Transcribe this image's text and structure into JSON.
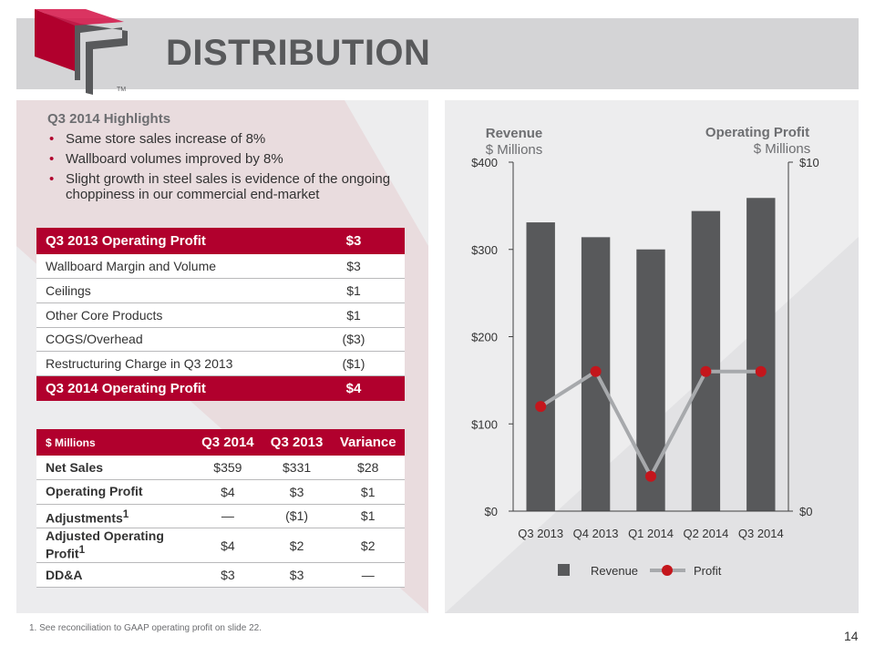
{
  "header": {
    "title": "DISTRIBUTION",
    "logo_mark": "TM"
  },
  "highlights": {
    "heading": "Q3 2014 Highlights",
    "items": [
      "Same store sales increase of 8%",
      "Wallboard volumes improved by 8%",
      "Slight growth in steel sales is evidence of the ongoing choppiness in our commercial end-market"
    ]
  },
  "bridge_table": {
    "rows": [
      {
        "label": "Q3 2013 Operating Profit",
        "value": "$3"
      },
      {
        "label": "Wallboard Margin and Volume",
        "value": "$3"
      },
      {
        "label": "Ceilings",
        "value": "$1"
      },
      {
        "label": "Other Core Products",
        "value": "$1"
      },
      {
        "label": "COGS/Overhead",
        "value": "($3)"
      },
      {
        "label": "Restructuring Charge in Q3 2013",
        "value": "($1)"
      },
      {
        "label": "Q3 2014 Operating Profit",
        "value": "$4"
      }
    ]
  },
  "financial_table": {
    "headers": [
      "$ Millions",
      "Q3 2014",
      "Q3 2013",
      "Variance"
    ],
    "rows": [
      {
        "label": "Net Sales",
        "sup": "",
        "values": [
          "$359",
          "$331",
          "$28"
        ]
      },
      {
        "label": "Operating Profit",
        "sup": "",
        "values": [
          "$4",
          "$3",
          "$1"
        ]
      },
      {
        "label": "Adjustments",
        "sup": "1",
        "values": [
          "—",
          "($1)",
          "$1"
        ]
      },
      {
        "label": "Adjusted Operating Profit",
        "sup": "1",
        "values": [
          "$4",
          "$2",
          "$2"
        ]
      },
      {
        "label": "DD&A",
        "sup": "",
        "values": [
          "$3",
          "$3",
          "—"
        ]
      }
    ]
  },
  "footnote": "1. See reconciliation to GAAP operating profit on slide 22.",
  "slide_number": "14",
  "chart_data": {
    "type": "bar",
    "categories": [
      "Q3 2013",
      "Q4 2013",
      "Q1 2014",
      "Q2 2014",
      "Q3 2014"
    ],
    "series": [
      {
        "name": "Revenue",
        "type": "bar",
        "axis": "left",
        "values": [
          331,
          314,
          300,
          344,
          359
        ]
      },
      {
        "name": "Profit",
        "type": "line",
        "axis": "right",
        "values": [
          3,
          4,
          1,
          4,
          4
        ]
      }
    ],
    "left_axis": {
      "title": "Revenue",
      "unit": "$ Millions",
      "ylim": [
        0,
        400
      ],
      "ticks": [
        0,
        100,
        200,
        300,
        400
      ],
      "tick_labels": [
        "$0",
        "$100",
        "$200",
        "$300",
        "$400"
      ]
    },
    "right_axis": {
      "title": "Operating Profit",
      "unit": "$ Millions",
      "ylim": [
        0,
        10
      ],
      "ticks": [
        0,
        10
      ],
      "tick_labels": [
        "$0",
        "$10"
      ]
    },
    "legend": {
      "placement": "bottom",
      "entries": [
        "Revenue",
        "Profit"
      ]
    },
    "grid": false,
    "colors": {
      "bar": "#58595b",
      "line": "#a7a9ac",
      "marker": "#c4161c"
    }
  },
  "colors": {
    "accent": "#b1002d",
    "header_band": "#d4d4d6",
    "panel": "#ededee",
    "title": "#58595b"
  }
}
